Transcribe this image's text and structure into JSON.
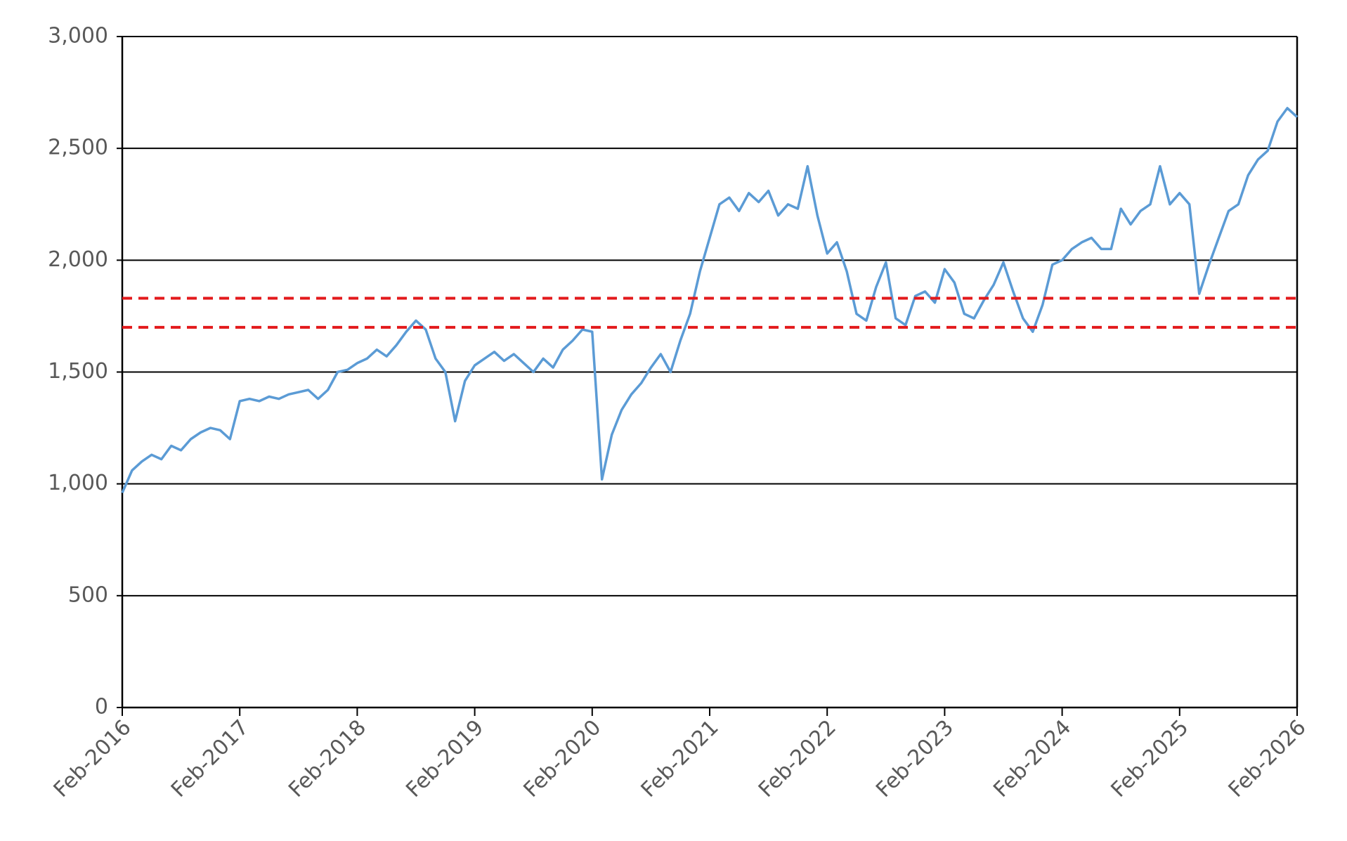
{
  "chart_data": {
    "type": "line",
    "x": [
      "2016-02",
      "2016-03",
      "2016-04",
      "2016-05",
      "2016-06",
      "2016-07",
      "2016-08",
      "2016-09",
      "2016-10",
      "2016-11",
      "2016-12",
      "2017-01",
      "2017-02",
      "2017-03",
      "2017-04",
      "2017-05",
      "2017-06",
      "2017-07",
      "2017-08",
      "2017-09",
      "2017-10",
      "2017-11",
      "2017-12",
      "2018-01",
      "2018-02",
      "2018-03",
      "2018-04",
      "2018-05",
      "2018-06",
      "2018-07",
      "2018-08",
      "2018-09",
      "2018-10",
      "2018-11",
      "2018-12",
      "2019-01",
      "2019-02",
      "2019-03",
      "2019-04",
      "2019-05",
      "2019-06",
      "2019-07",
      "2019-08",
      "2019-09",
      "2019-10",
      "2019-11",
      "2019-12",
      "2020-01",
      "2020-02",
      "2020-03",
      "2020-04",
      "2020-05",
      "2020-06",
      "2020-07",
      "2020-08",
      "2020-09",
      "2020-10",
      "2020-11",
      "2020-12",
      "2021-01",
      "2021-02",
      "2021-03",
      "2021-04",
      "2021-05",
      "2021-06",
      "2021-07",
      "2021-08",
      "2021-09",
      "2021-10",
      "2021-11",
      "2021-12",
      "2022-01",
      "2022-02",
      "2022-03",
      "2022-04",
      "2022-05",
      "2022-06",
      "2022-07",
      "2022-08",
      "2022-09",
      "2022-10",
      "2022-11",
      "2022-12",
      "2023-01",
      "2023-02",
      "2023-03",
      "2023-04",
      "2023-05",
      "2023-06",
      "2023-07",
      "2023-08",
      "2023-09",
      "2023-10",
      "2023-11",
      "2023-12",
      "2024-01",
      "2024-02",
      "2024-03",
      "2024-04",
      "2024-05",
      "2024-06",
      "2024-07",
      "2024-08",
      "2024-09",
      "2024-10",
      "2024-11",
      "2024-12",
      "2025-01",
      "2025-02",
      "2025-03",
      "2025-04",
      "2025-05",
      "2025-06",
      "2025-07",
      "2025-08",
      "2025-09",
      "2025-10",
      "2025-11",
      "2025-12",
      "2026-01",
      "2026-02"
    ],
    "series": [
      {
        "color": "#5b9bd5",
        "values": [
          960,
          1060,
          1100,
          1130,
          1110,
          1170,
          1150,
          1200,
          1230,
          1250,
          1240,
          1200,
          1370,
          1380,
          1370,
          1390,
          1380,
          1400,
          1410,
          1420,
          1380,
          1420,
          1500,
          1510,
          1540,
          1560,
          1600,
          1570,
          1620,
          1680,
          1730,
          1690,
          1560,
          1500,
          1280,
          1460,
          1530,
          1560,
          1590,
          1550,
          1580,
          1540,
          1500,
          1560,
          1520,
          1600,
          1640,
          1690,
          1680,
          1020,
          1220,
          1330,
          1400,
          1450,
          1520,
          1580,
          1500,
          1640,
          1760,
          1950,
          2100,
          2250,
          2280,
          2220,
          2300,
          2260,
          2310,
          2200,
          2250,
          2230,
          2420,
          2200,
          2030,
          2080,
          1950,
          1760,
          1730,
          1880,
          1990,
          1740,
          1710,
          1840,
          1860,
          1810,
          1960,
          1900,
          1760,
          1740,
          1820,
          1890,
          1990,
          1860,
          1740,
          1680,
          1800,
          1980,
          2000,
          2050,
          2080,
          2100,
          2050,
          2050,
          2230,
          2160,
          2220,
          2250,
          2420,
          2250,
          2300,
          2250,
          1850,
          1980,
          2100,
          2220,
          2250,
          2380,
          2450,
          2490,
          2620,
          2680,
          2640
        ]
      }
    ],
    "reference_lines": [
      {
        "value": 1830,
        "color": "#e31a1c"
      },
      {
        "value": 1700,
        "color": "#e31a1c"
      }
    ],
    "xlim": [
      "2016-02",
      "2026-02"
    ],
    "xticks": [
      {
        "value": "2016-02",
        "label": "Feb-2016"
      },
      {
        "value": "2017-02",
        "label": "Feb-2017"
      },
      {
        "value": "2018-02",
        "label": "Feb-2018"
      },
      {
        "value": "2019-02",
        "label": "Feb-2019"
      },
      {
        "value": "2020-02",
        "label": "Feb-2020"
      },
      {
        "value": "2021-02",
        "label": "Feb-2021"
      },
      {
        "value": "2022-02",
        "label": "Feb-2022"
      },
      {
        "value": "2023-02",
        "label": "Feb-2023"
      },
      {
        "value": "2024-02",
        "label": "Feb-2024"
      },
      {
        "value": "2025-02",
        "label": "Feb-2025"
      },
      {
        "value": "2026-02",
        "label": "Feb-2026"
      }
    ],
    "ylim": [
      0,
      3000
    ],
    "yticks": [
      0,
      {
        "value": 500,
        "label": "500"
      },
      {
        "value": 1000,
        "label": "1,000"
      },
      {
        "value": 1500,
        "label": "1,500"
      },
      {
        "value": 2000,
        "label": "2,000"
      },
      {
        "value": 2500,
        "label": "2,500"
      },
      {
        "value": 3000,
        "label": "3,000"
      }
    ],
    "grid": true
  }
}
